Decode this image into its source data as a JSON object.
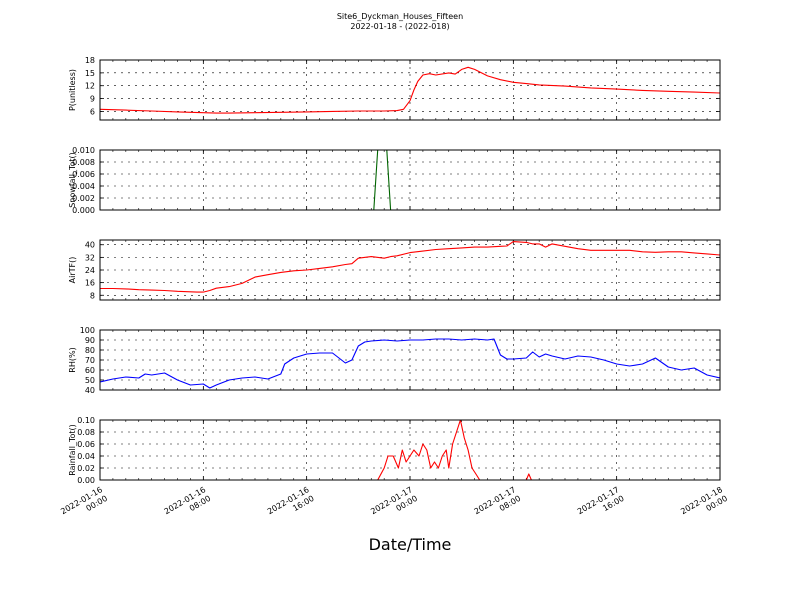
{
  "figure": {
    "title": "Site6_Dyckman_Houses_Fifteen",
    "subtitle": "2022-01-18 - (2022-018)",
    "xlabel": "Date/Time",
    "x_ticks": [
      {
        "value": 0,
        "line1": "2022-01-16",
        "line2": "00:00"
      },
      {
        "value": 8,
        "line1": "2022-01-16",
        "line2": "08:00"
      },
      {
        "value": 16,
        "line1": "2022-01-16",
        "line2": "16:00"
      },
      {
        "value": 24,
        "line1": "2022-01-17",
        "line2": "00:00"
      },
      {
        "value": 32,
        "line1": "2022-01-17",
        "line2": "08:00"
      },
      {
        "value": 40,
        "line1": "2022-01-17",
        "line2": "16:00"
      },
      {
        "value": 48,
        "line1": "2022-01-18",
        "line2": "00:00"
      }
    ]
  },
  "chart_data": [
    {
      "type": "line",
      "ylabel": "P(unitless)",
      "ylim": [
        4,
        18
      ],
      "yticks": [
        6,
        9,
        12,
        15,
        18
      ],
      "grid": true,
      "series": [
        {
          "color": "#ff0000",
          "x": [
            0,
            2,
            4,
            6,
            8,
            9,
            10,
            12,
            14,
            16,
            18,
            20,
            22,
            23,
            23.5,
            24,
            24.3,
            24.6,
            25,
            25.5,
            26,
            27,
            27.5,
            28,
            28.5,
            29,
            30,
            31,
            32,
            33,
            34,
            36,
            38,
            40,
            42,
            44,
            46,
            48
          ],
          "y": [
            6.5,
            6.3,
            6.1,
            5.9,
            5.7,
            5.6,
            5.6,
            5.7,
            5.8,
            5.9,
            6.0,
            6.1,
            6.1,
            6.2,
            6.5,
            8.5,
            11,
            13,
            14.5,
            14.8,
            14.5,
            15.0,
            14.7,
            15.8,
            16.3,
            15.8,
            14.3,
            13.4,
            12.8,
            12.5,
            12.2,
            11.9,
            11.5,
            11.2,
            10.9,
            10.7,
            10.5,
            10.3
          ]
        }
      ]
    },
    {
      "type": "line",
      "ylabel": "Snowfall_Tot()",
      "ylim": [
        0,
        0.01
      ],
      "yticks": [
        0.0,
        0.002,
        0.004,
        0.006,
        0.008,
        0.01
      ],
      "ytick_labels": [
        "0.000",
        "0.002",
        "0.004",
        "0.006",
        "0.008",
        "0.010"
      ],
      "grid": true,
      "series": [
        {
          "color": "#006400",
          "x": [
            0,
            21.2,
            21.5,
            22.2,
            22.5,
            48
          ],
          "y": [
            0,
            0,
            0.01,
            0.01,
            0,
            0
          ]
        }
      ]
    },
    {
      "type": "line",
      "ylabel": "AirTF()",
      "ylim": [
        5,
        43
      ],
      "yticks": [
        8,
        16,
        24,
        32,
        40
      ],
      "grid": true,
      "series": [
        {
          "color": "#ff0000",
          "x": [
            0,
            1,
            2,
            3,
            4,
            5,
            6,
            7,
            7.5,
            8,
            8.5,
            9,
            10,
            11,
            11.5,
            12,
            13,
            14,
            15,
            16,
            17,
            18,
            19,
            19.5,
            20,
            21,
            22,
            22.5,
            23,
            24,
            25,
            26,
            27,
            28,
            29,
            30,
            31,
            31.5,
            32,
            33,
            33.5,
            34,
            34.5,
            35,
            36,
            37,
            38,
            39,
            40,
            41,
            42,
            43,
            44,
            45,
            46,
            47,
            48
          ],
          "y": [
            12.3,
            12.3,
            12,
            11.5,
            11.3,
            11,
            10.5,
            10.2,
            10,
            10,
            11,
            12.5,
            13.5,
            15.5,
            17.5,
            19.5,
            21,
            22.5,
            23.5,
            24,
            25,
            26,
            27.5,
            28,
            31.5,
            32.5,
            31.5,
            32.5,
            33,
            35,
            36,
            37,
            37.5,
            38,
            38.5,
            38.5,
            39,
            39.2,
            42,
            41.5,
            40.5,
            40.5,
            38.5,
            40.5,
            39,
            37.5,
            36.5,
            36.5,
            36.5,
            36.5,
            35.5,
            35.2,
            35.5,
            35.5,
            34.8,
            34.2,
            33.5
          ]
        }
      ]
    },
    {
      "type": "line",
      "ylabel": "RH(%)",
      "ylim": [
        40,
        100
      ],
      "yticks": [
        40,
        50,
        60,
        70,
        80,
        90,
        100
      ],
      "grid": true,
      "series": [
        {
          "color": "#0000ff",
          "x": [
            0,
            1,
            2,
            3,
            3.5,
            4,
            5,
            6,
            7,
            8,
            8.5,
            9,
            10,
            11,
            12,
            13,
            14,
            14.3,
            15,
            16,
            17,
            18,
            19,
            19.5,
            20,
            20.5,
            21,
            22,
            23,
            24,
            25,
            26,
            27,
            28,
            29,
            30,
            30.5,
            31,
            31.5,
            32,
            33,
            33.5,
            34,
            34.5,
            35,
            36,
            37,
            38,
            39,
            40,
            41,
            42,
            43,
            44,
            45,
            46,
            47,
            48
          ],
          "y": [
            48,
            51,
            53,
            52,
            56,
            55,
            57,
            50,
            45,
            46,
            42,
            45,
            50,
            52,
            53,
            51,
            56,
            66,
            72,
            76,
            77,
            77,
            67,
            70,
            84,
            88,
            89,
            90,
            89,
            90,
            90,
            91,
            91,
            90,
            91,
            90,
            91,
            75,
            71,
            71,
            72,
            78,
            73,
            76,
            74,
            71,
            74,
            73,
            70,
            66,
            64,
            66,
            72,
            63,
            60,
            62,
            55,
            52
          ]
        }
      ]
    },
    {
      "type": "line",
      "ylabel": "Rainfall_Tot()",
      "ylim": [
        0,
        0.1
      ],
      "yticks": [
        0.0,
        0.02,
        0.04,
        0.06,
        0.08,
        0.1
      ],
      "ytick_labels": [
        "0.00",
        "0.02",
        "0.04",
        "0.06",
        "0.08",
        "0.10"
      ],
      "grid": true,
      "series": [
        {
          "color": "#ff0000",
          "x": [
            0,
            21.5,
            22,
            22.3,
            22.7,
            23.1,
            23.4,
            23.7,
            24,
            24.3,
            24.7,
            25,
            25.3,
            25.6,
            25.9,
            26.2,
            26.5,
            26.8,
            27,
            27.3,
            27.6,
            27.9,
            28.2,
            28.5,
            28.8,
            29.1,
            29.4,
            29.7,
            30,
            30.3,
            30.6,
            32,
            33,
            33.2,
            33.4,
            48
          ],
          "y": [
            0,
            0,
            0.02,
            0.04,
            0.04,
            0.02,
            0.05,
            0.03,
            0.04,
            0.05,
            0.04,
            0.06,
            0.05,
            0.02,
            0.03,
            0.02,
            0.04,
            0.05,
            0.02,
            0.06,
            0.08,
            0.1,
            0.07,
            0.05,
            0.02,
            0.01,
            0,
            0,
            0,
            0,
            0,
            0,
            0,
            0.01,
            0,
            0
          ]
        }
      ]
    }
  ]
}
